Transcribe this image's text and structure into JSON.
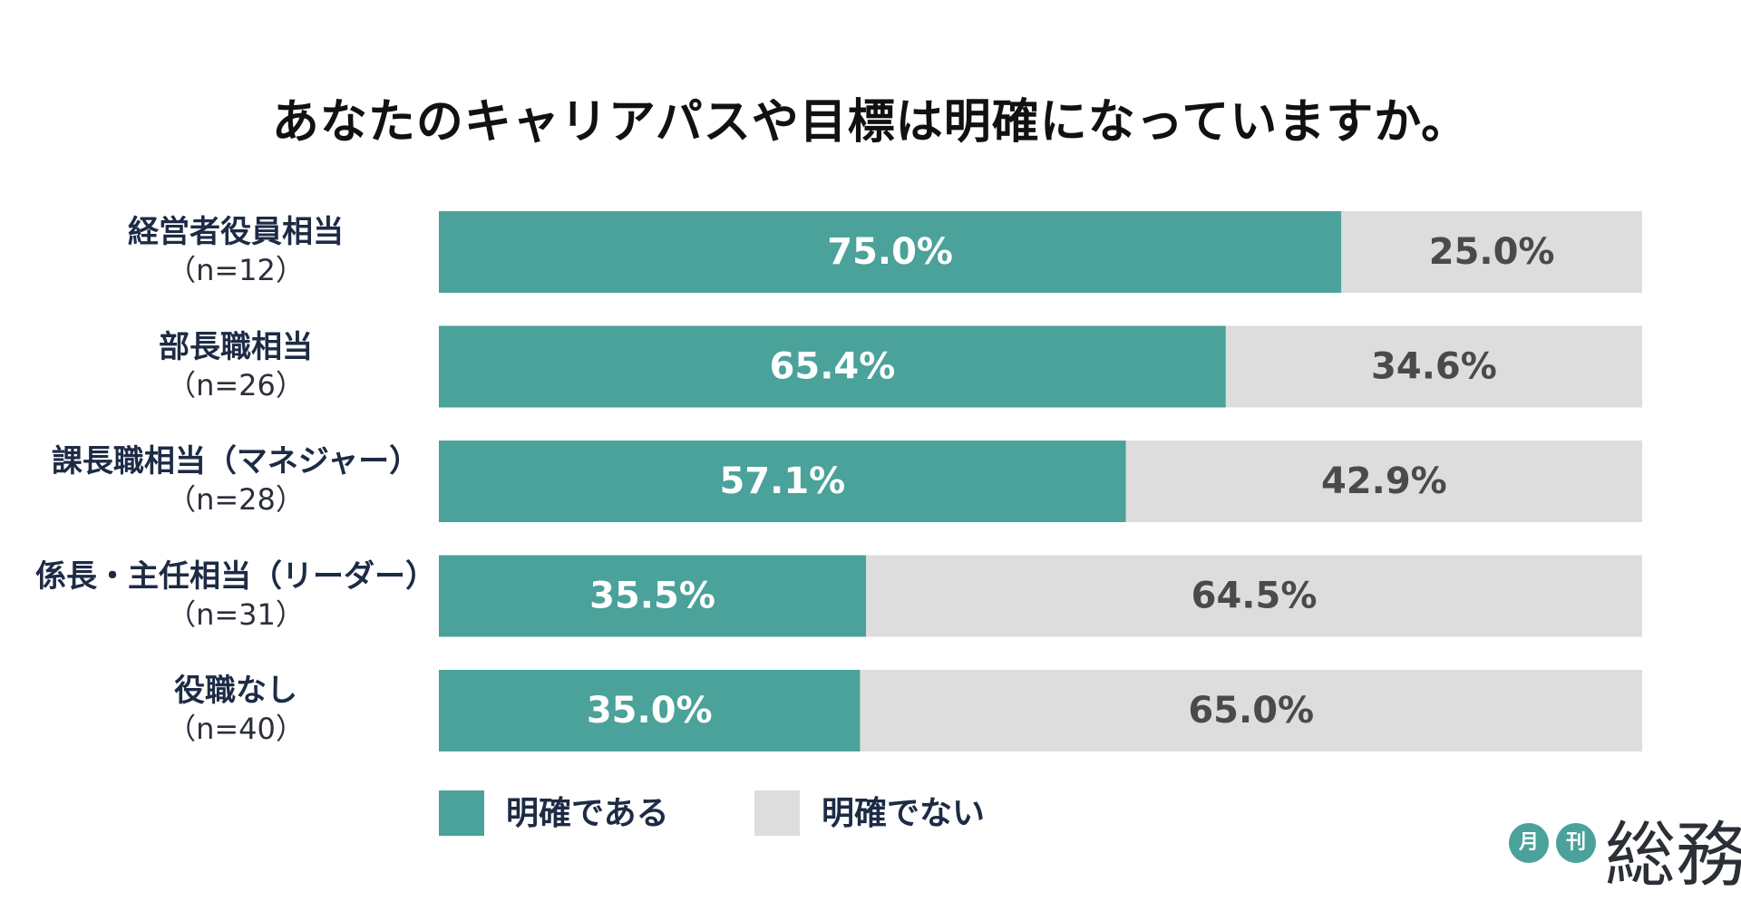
{
  "chart_data": {
    "type": "bar",
    "orientation": "horizontal",
    "stacked": true,
    "title": "あなたのキャリアパスや目標は明確になっていますか。",
    "categories": [
      {
        "label": "経営者役員相当",
        "n": "（n=12）"
      },
      {
        "label": "部長職相当",
        "n": "（n=26）"
      },
      {
        "label": "課長職相当（マネジャー）",
        "n": "（n=28）"
      },
      {
        "label": "係長・主任相当（リーダー）",
        "n": "（n=31）"
      },
      {
        "label": "役職なし",
        "n": "（n=40）"
      }
    ],
    "series": [
      {
        "name": "明確である",
        "color": "#4aa29a",
        "label_color": "#ffffff",
        "values": [
          75.0,
          65.4,
          57.1,
          35.5,
          35.0
        ],
        "labels": [
          "75.0%",
          "65.4%",
          "57.1%",
          "35.5%",
          "35.0%"
        ]
      },
      {
        "name": "明確でない",
        "color": "#dddddd",
        "label_color": "#4a4a4a",
        "values": [
          25.0,
          34.6,
          42.9,
          64.5,
          65.0
        ],
        "labels": [
          "25.0%",
          "34.6%",
          "42.9%",
          "64.5%",
          "65.0%"
        ]
      }
    ],
    "xlim": [
      0,
      100
    ],
    "grid": false,
    "legend_position": "bottom"
  },
  "logo": {
    "circle1": "月",
    "circle2": "刊",
    "main": "総務",
    "color": "#4aa29a"
  }
}
